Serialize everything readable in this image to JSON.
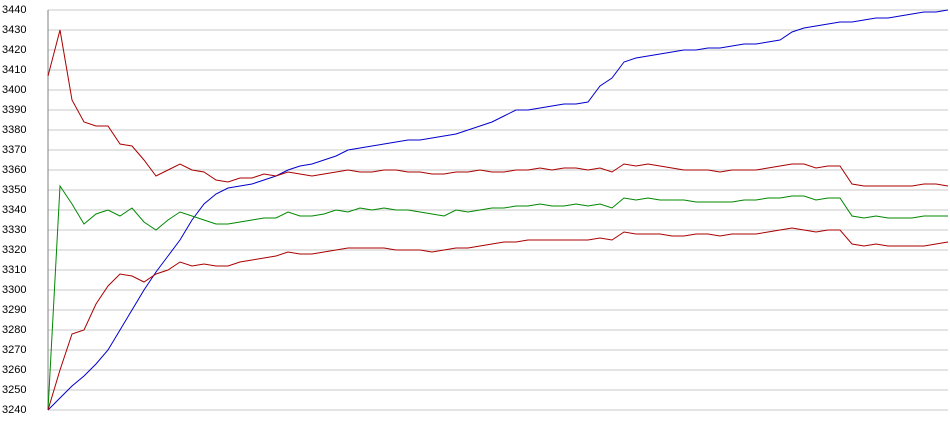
{
  "chart_data": {
    "type": "line",
    "ylim": [
      3240,
      3440
    ],
    "yticks": [
      3240,
      3250,
      3260,
      3270,
      3280,
      3290,
      3300,
      3310,
      3320,
      3330,
      3340,
      3350,
      3360,
      3370,
      3380,
      3390,
      3400,
      3410,
      3420,
      3430,
      3440
    ],
    "grid": true,
    "series": [
      {
        "color": "#0000cc",
        "values": [
          3240,
          3246,
          3252,
          3257,
          3263,
          3270,
          3280,
          3290,
          3300,
          3309,
          3317,
          3325,
          3335,
          3343,
          3348,
          3351,
          3352,
          3353,
          3355,
          3357,
          3360,
          3362,
          3363,
          3365,
          3367,
          3370,
          3371,
          3372,
          3373,
          3374,
          3375,
          3375,
          3376,
          3377,
          3378,
          3380,
          3382,
          3384,
          3387,
          3390,
          3390,
          3391,
          3392,
          3393,
          3393,
          3394,
          3402,
          3406,
          3414,
          3416,
          3417,
          3418,
          3419,
          3420,
          3420,
          3421,
          3421,
          3422,
          3423,
          3423,
          3424,
          3425,
          3429,
          3431,
          3432,
          3433,
          3434,
          3434,
          3435,
          3436,
          3436,
          3437,
          3438,
          3439,
          3439,
          3440
        ]
      },
      {
        "color": "#aa0000",
        "values": [
          3407,
          3430,
          3395,
          3384,
          3382,
          3382,
          3373,
          3372,
          3365,
          3357,
          3360,
          3363,
          3360,
          3359,
          3355,
          3354,
          3356,
          3356,
          3358,
          3357,
          3359,
          3358,
          3357,
          3358,
          3359,
          3360,
          3359,
          3359,
          3360,
          3360,
          3359,
          3359,
          3358,
          3358,
          3359,
          3359,
          3360,
          3359,
          3359,
          3360,
          3360,
          3361,
          3360,
          3361,
          3361,
          3360,
          3361,
          3359,
          3363,
          3362,
          3363,
          3362,
          3361,
          3360,
          3360,
          3360,
          3359,
          3360,
          3360,
          3360,
          3361,
          3362,
          3363,
          3363,
          3361,
          3362,
          3362,
          3353,
          3352,
          3352,
          3352,
          3352,
          3352,
          3353,
          3353,
          3352
        ]
      },
      {
        "color": "#008800",
        "values": [
          3240,
          3352,
          3343,
          3333,
          3338,
          3340,
          3337,
          3341,
          3334,
          3330,
          3335,
          3339,
          3337,
          3335,
          3333,
          3333,
          3334,
          3335,
          3336,
          3336,
          3339,
          3337,
          3337,
          3338,
          3340,
          3339,
          3341,
          3340,
          3341,
          3340,
          3340,
          3339,
          3338,
          3337,
          3340,
          3339,
          3340,
          3341,
          3341,
          3342,
          3342,
          3343,
          3342,
          3342,
          3343,
          3342,
          3343,
          3341,
          3346,
          3345,
          3346,
          3345,
          3345,
          3345,
          3344,
          3344,
          3344,
          3344,
          3345,
          3345,
          3346,
          3346,
          3347,
          3347,
          3345,
          3346,
          3346,
          3337,
          3336,
          3337,
          3336,
          3336,
          3336,
          3337,
          3337,
          3337
        ]
      },
      {
        "color": "#aa0000",
        "values": [
          3240,
          3260,
          3278,
          3280,
          3293,
          3302,
          3308,
          3307,
          3304,
          3308,
          3310,
          3314,
          3312,
          3313,
          3312,
          3312,
          3314,
          3315,
          3316,
          3317,
          3319,
          3318,
          3318,
          3319,
          3320,
          3321,
          3321,
          3321,
          3321,
          3320,
          3320,
          3320,
          3319,
          3320,
          3321,
          3321,
          3322,
          3323,
          3324,
          3324,
          3325,
          3325,
          3325,
          3325,
          3325,
          3325,
          3326,
          3325,
          3329,
          3328,
          3328,
          3328,
          3327,
          3327,
          3328,
          3328,
          3327,
          3328,
          3328,
          3328,
          3329,
          3330,
          3331,
          3330,
          3329,
          3330,
          3330,
          3323,
          3322,
          3323,
          3322,
          3322,
          3322,
          3322,
          3323,
          3324
        ]
      }
    ]
  }
}
